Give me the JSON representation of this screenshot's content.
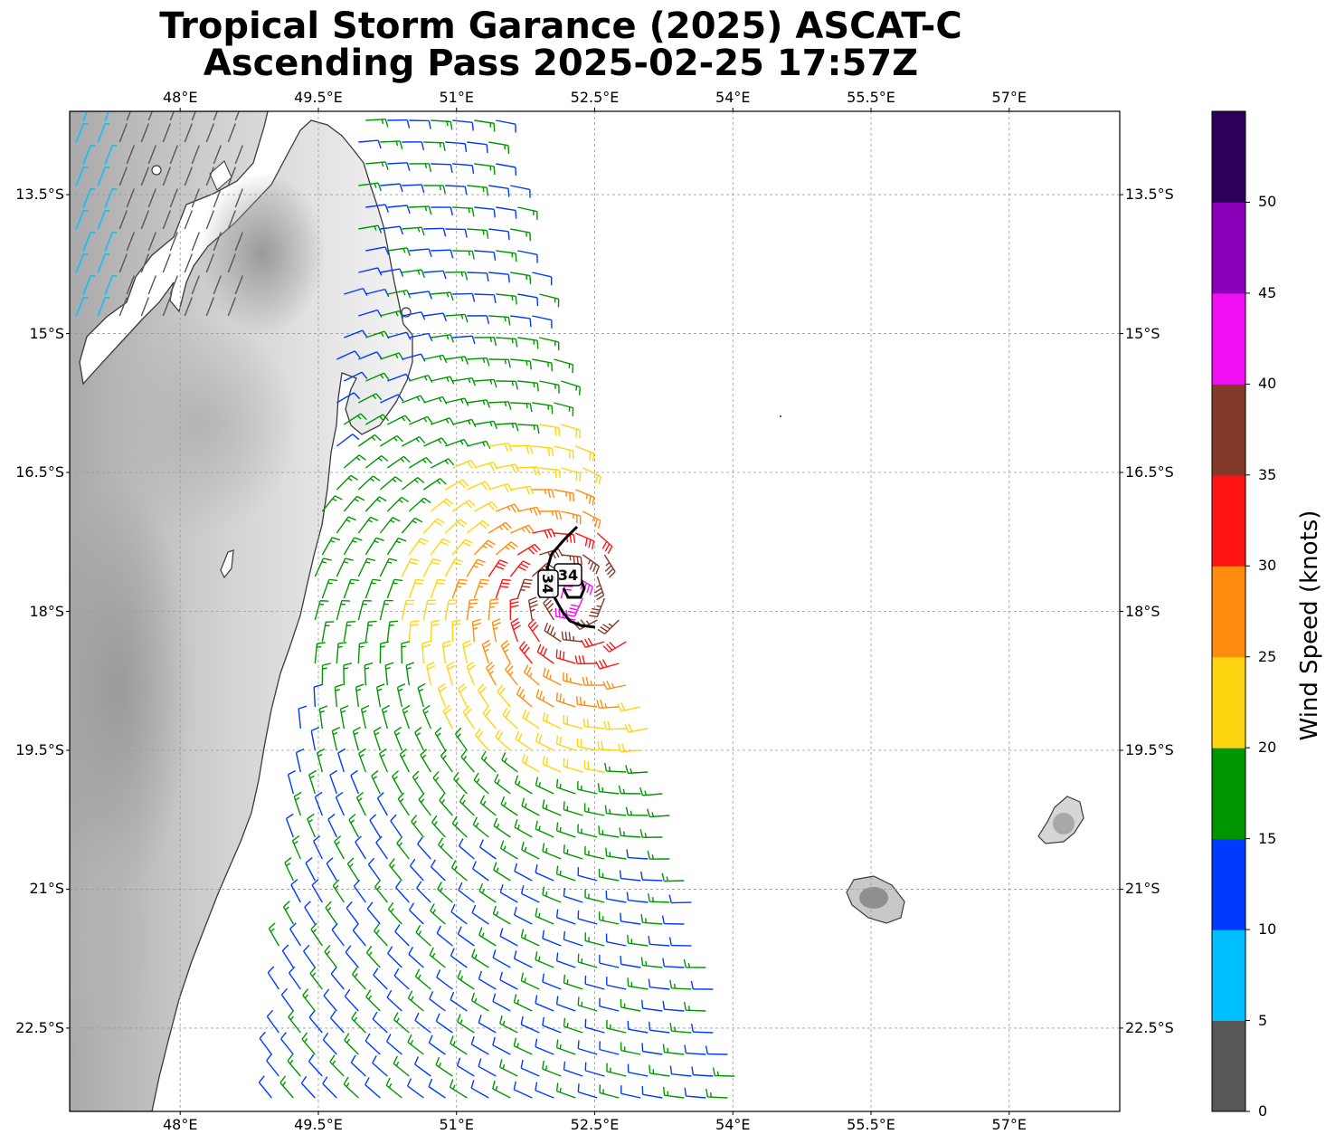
{
  "title": {
    "line1": "Tropical Storm Garance (2025) ASCAT-C",
    "line2": "Ascending Pass 2025-02-25 17:57Z"
  },
  "map": {
    "lon_range": [
      46.8,
      58.2
    ],
    "lat_range": [
      -23.4,
      -12.6
    ],
    "lon_ticks": [
      {
        "value": 48.0,
        "label": "48°E"
      },
      {
        "value": 49.5,
        "label": "49.5°E"
      },
      {
        "value": 51.0,
        "label": "51°E"
      },
      {
        "value": 52.5,
        "label": "52.5°E"
      },
      {
        "value": 54.0,
        "label": "54°E"
      },
      {
        "value": 55.5,
        "label": "55.5°E"
      },
      {
        "value": 57.0,
        "label": "57°E"
      }
    ],
    "lat_ticks": [
      {
        "value": -13.5,
        "label": "13.5°S"
      },
      {
        "value": -15.0,
        "label": "15°S"
      },
      {
        "value": -16.5,
        "label": "16.5°S"
      },
      {
        "value": -18.0,
        "label": "18°S"
      },
      {
        "value": -19.5,
        "label": "19.5°S"
      },
      {
        "value": -21.0,
        "label": "21°S"
      },
      {
        "value": -22.5,
        "label": "22.5°S"
      }
    ],
    "gridlines": true,
    "storm_center": {
      "lon": 52.25,
      "lat": -17.85
    },
    "wind_radius_contour_label": "34",
    "land_features": [
      "Madagascar",
      "Reunion",
      "Mauritius"
    ],
    "swath": "ASCAT-C ascending pass, roughly 49.0–54.3°E"
  },
  "colorbar": {
    "title": "Wind Speed (knots)",
    "range": [
      0,
      55
    ],
    "tick_labels": [
      "0",
      "5",
      "10",
      "15",
      "20",
      "25",
      "30",
      "35",
      "40",
      "45",
      "50"
    ],
    "bins": [
      {
        "from": 0,
        "to": 5,
        "color": "#585858"
      },
      {
        "from": 5,
        "to": 10,
        "color": "#00bfff"
      },
      {
        "from": 10,
        "to": 15,
        "color": "#0039ff"
      },
      {
        "from": 15,
        "to": 20,
        "color": "#009600"
      },
      {
        "from": 20,
        "to": 25,
        "color": "#ffd410"
      },
      {
        "from": 25,
        "to": 30,
        "color": "#ff8c0f"
      },
      {
        "from": 30,
        "to": 35,
        "color": "#ff1414"
      },
      {
        "from": 35,
        "to": 40,
        "color": "#843a28"
      },
      {
        "from": 40,
        "to": 45,
        "color": "#f20ef2"
      },
      {
        "from": 45,
        "to": 50,
        "color": "#8a00b8"
      },
      {
        "from": 50,
        "to": 55,
        "color": "#2c005a"
      }
    ]
  }
}
